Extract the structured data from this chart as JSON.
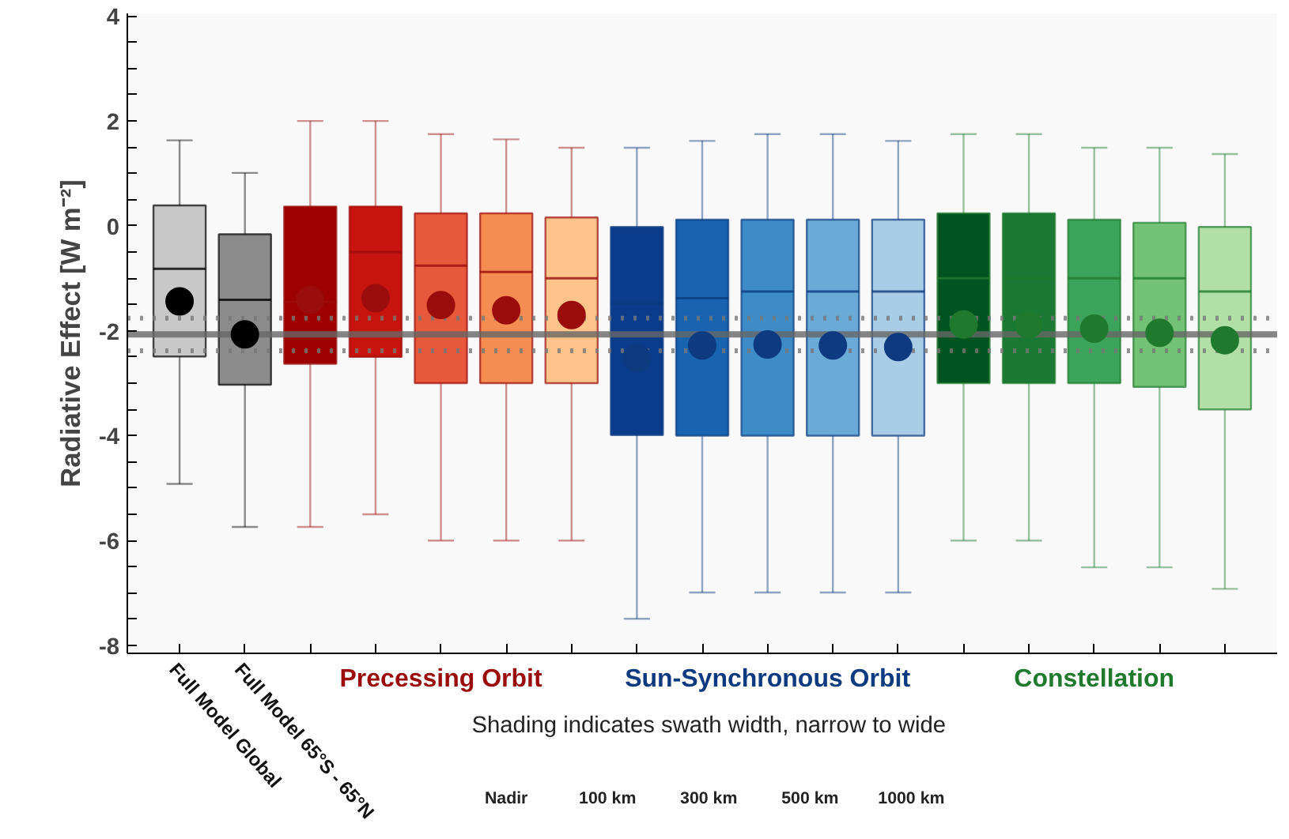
{
  "chart_data": {
    "type": "box",
    "ylabel": "Radiative Effect [W m⁻²]",
    "categories": [
      "Full Model Global",
      "Full Model 65°S - 65°N",
      null,
      null,
      null,
      null,
      null,
      null,
      null,
      null,
      null,
      null,
      null,
      null,
      null,
      null,
      null
    ],
    "ylim": [
      -8.15,
      4.05
    ],
    "yticks": [
      -8,
      {
        "value": -7.5,
        "label": null
      },
      {
        "value": -7,
        "label": null
      },
      {
        "value": -6.5,
        "label": null
      },
      -6,
      {
        "value": -5.5,
        "label": null
      },
      {
        "value": -5,
        "label": null
      },
      {
        "value": -4.5,
        "label": null
      },
      -4,
      {
        "value": -3.5,
        "label": null
      },
      {
        "value": -3,
        "label": null
      },
      {
        "value": -2.5,
        "label": null
      },
      -2,
      {
        "value": -1.5,
        "label": null
      },
      {
        "value": -1,
        "label": null
      },
      {
        "value": -0.5,
        "label": null
      },
      0,
      {
        "value": 0.5,
        "label": null
      },
      {
        "value": 1,
        "label": null
      },
      {
        "value": 1.5,
        "label": null
      },
      2,
      {
        "value": 2.5,
        "label": null
      },
      {
        "value": 3,
        "label": null
      },
      {
        "value": 3.5,
        "label": null
      },
      4
    ],
    "grid": false,
    "series": [
      {
        "color": "#000000",
        "colors": [
          "#c8c8c8",
          "#8c8c8c",
          null,
          null,
          null,
          null,
          null,
          null,
          null,
          null,
          null,
          null,
          null,
          null,
          null,
          null,
          null
        ],
        "boxes": [
          {
            "low": -4.92,
            "q1": -2.49,
            "median": -0.82,
            "q3": 0.39,
            "high": 1.63,
            "mean": -1.44
          },
          {
            "low": -5.74,
            "q1": -3.03,
            "median": -1.41,
            "q3": -0.16,
            "high": 1.01,
            "mean": -2.07
          },
          null,
          null,
          null,
          null,
          null,
          null,
          null,
          null,
          null,
          null,
          null,
          null,
          null,
          null,
          null
        ]
      },
      {
        "name": "Precessing Orbit",
        "color": "#9b0d0d",
        "colors": [
          null,
          null,
          "#9e0000",
          "#c8140f",
          "#e8583a",
          "#f58c52",
          "#fcc38a",
          null,
          null,
          null,
          null,
          null,
          null,
          null,
          null,
          null,
          null
        ],
        "boxes": [
          null,
          null,
          {
            "low": -5.74,
            "q1": -2.63,
            "median": -1.45,
            "q3": 0.37,
            "high": 2.0,
            "mean": -1.41
          },
          {
            "low": -5.5,
            "q1": -2.5,
            "median": -0.5,
            "q3": 0.37,
            "high": 2.0,
            "mean": -1.38
          },
          {
            "low": -6.0,
            "q1": -3.0,
            "median": -0.76,
            "q3": 0.24,
            "high": 1.75,
            "mean": -1.51
          },
          {
            "low": -6.0,
            "q1": -3.0,
            "median": -0.88,
            "q3": 0.24,
            "high": 1.65,
            "mean": -1.61
          },
          {
            "low": -6.0,
            "q1": -3.0,
            "median": -1.0,
            "q3": 0.16,
            "high": 1.49,
            "mean": -1.7
          },
          null,
          null,
          null,
          null,
          null,
          null,
          null,
          null,
          null,
          null
        ]
      },
      {
        "name": "Sun-Synchronous Orbit",
        "color": "#0d3a80",
        "colors": [
          null,
          null,
          null,
          null,
          null,
          null,
          null,
          "#0b3c8c",
          "#1864b0",
          "#3d8cc8",
          "#6aaad6",
          "#a9cde6",
          null,
          null,
          null,
          null,
          null
        ],
        "boxes": [
          null,
          null,
          null,
          null,
          null,
          null,
          null,
          {
            "low": -7.49,
            "q1": -3.99,
            "median": -1.48,
            "q3": -0.02,
            "high": 1.49,
            "mean": -2.52
          },
          {
            "low": -6.99,
            "q1": -4.0,
            "median": -1.38,
            "q3": 0.12,
            "high": 1.62,
            "mean": -2.28
          },
          {
            "low": -6.99,
            "q1": -4.0,
            "median": -1.25,
            "q3": 0.12,
            "high": 1.75,
            "mean": -2.26
          },
          {
            "low": -6.99,
            "q1": -4.0,
            "median": -1.25,
            "q3": 0.12,
            "high": 1.75,
            "mean": -2.28
          },
          {
            "low": -6.99,
            "q1": -4.0,
            "median": -1.25,
            "q3": 0.12,
            "high": 1.62,
            "mean": -2.31
          },
          null,
          null,
          null,
          null,
          null
        ]
      },
      {
        "name": "Constellation",
        "color": "#1f7a2e",
        "colors": [
          null,
          null,
          null,
          null,
          null,
          null,
          null,
          null,
          null,
          null,
          null,
          null,
          "#00541f",
          "#1a7a35",
          "#3ca35a",
          "#74c276",
          "#b2dfa5"
        ],
        "boxes": [
          null,
          null,
          null,
          null,
          null,
          null,
          null,
          null,
          null,
          null,
          null,
          null,
          {
            "low": -6.0,
            "q1": -3.0,
            "median": -1.0,
            "q3": 0.24,
            "high": 1.75,
            "mean": -1.88
          },
          {
            "low": -6.0,
            "q1": -3.0,
            "median": -1.0,
            "q3": 0.24,
            "high": 1.75,
            "mean": -1.88
          },
          {
            "low": -6.51,
            "q1": -3.0,
            "median": -1.0,
            "q3": 0.12,
            "high": 1.49,
            "mean": -1.96
          },
          {
            "low": -6.51,
            "q1": -3.07,
            "median": -1.0,
            "q3": 0.06,
            "high": 1.49,
            "mean": -2.04
          },
          {
            "low": -6.92,
            "q1": -3.5,
            "median": -1.25,
            "q3": -0.02,
            "high": 1.37,
            "mean": -2.18
          }
        ]
      }
    ],
    "ref_lines": [
      {
        "axis": "y",
        "value": -2.07,
        "color": "#666666",
        "line_style": "solid"
      },
      {
        "axis": "y",
        "value": -1.76,
        "color": "#777777",
        "line_style": "dotted"
      },
      {
        "axis": "y",
        "value": -2.38,
        "color": "#777777",
        "line_style": "dotted"
      }
    ],
    "annotations": [
      "Shading indicates swath width, narrow to wide",
      "Nadir",
      "100 km",
      "300 km",
      "500 km",
      "1000 km"
    ]
  }
}
